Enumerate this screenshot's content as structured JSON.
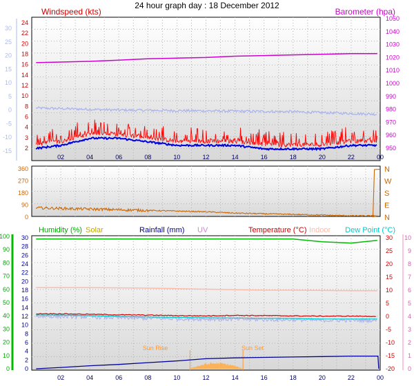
{
  "page_title": "24 hour graph day : 18 December 2012",
  "colors": {
    "wind": "#ff0000",
    "wind_avg": "#0000dd",
    "baro": "#cc00cc",
    "temp_axis": "#aabbee",
    "dir": "#cc6600",
    "humidity": "#00bb00",
    "solar": "#bbaa00",
    "rain": "#000099",
    "uv": "#cc88cc",
    "temperature": "#cc0000",
    "indoor": "#ffbbaa",
    "dewpoint": "#00cccc",
    "sun_marker": "#ff9933"
  },
  "time_ticks": [
    "02",
    "04",
    "06",
    "08",
    "10",
    "12",
    "14",
    "16",
    "18",
    "20",
    "22",
    "00"
  ],
  "panels": {
    "wind": {
      "title_left": "Windspeed (kts)",
      "title_right": "Barometer (hpa)",
      "left_ticks": [
        "24",
        "22",
        "20",
        "18",
        "16",
        "14",
        "12",
        "10",
        "8",
        "6",
        "4",
        "3",
        "2"
      ],
      "outer_ticks": [
        "30",
        "25",
        "20",
        "15",
        "10",
        "5",
        "0",
        "-5",
        "-10",
        "-15"
      ],
      "right_ticks": [
        "1050",
        "1040",
        "1030",
        "1020",
        "1010",
        "1000",
        "990",
        "980",
        "970",
        "960",
        "950"
      ]
    },
    "direction": {
      "left_ticks": [
        "360",
        "270",
        "180",
        "90",
        "0"
      ],
      "right_ticks": [
        "N",
        "W",
        "S",
        "E",
        "N"
      ]
    },
    "climate": {
      "legend": {
        "humidity": "Humidity (%)",
        "solar": "Solar",
        "rain": "Rainfall (mm)",
        "uv": "UV",
        "temperature": "Temperature (°C)",
        "indoor": "Indoor",
        "dewpoint": "Dew Point (°C)"
      },
      "humidity_ticks": [
        "100",
        "90",
        "80",
        "70",
        "60",
        "50",
        "40",
        "30",
        "20",
        "10",
        "0"
      ],
      "rain_ticks": [
        "30",
        "28",
        "26",
        "24",
        "22",
        "20",
        "18",
        "16",
        "14",
        "12",
        "10",
        "8",
        "6",
        "4",
        "2",
        "0"
      ],
      "temp_ticks": [
        "30",
        "25",
        "20",
        "15",
        "10",
        "5",
        "0",
        "-5",
        "-10",
        "-15",
        "-20"
      ],
      "uv_ticks": [
        "10",
        "9",
        "8",
        "7",
        "6",
        "5",
        "4",
        "3",
        "2",
        "1",
        "0"
      ],
      "sunrise_label": "Sun Rise",
      "sunset_label": "Sun Set",
      "bottom_tick_14_annot": "Sun Set"
    }
  },
  "chart_data": [
    {
      "type": "line",
      "title": "Windspeed (kts) / Barometer (hpa)",
      "x_hours": [
        0,
        2,
        4,
        6,
        8,
        10,
        12,
        14,
        16,
        18,
        20,
        22,
        24
      ],
      "series": [
        {
          "name": "Windspeed (kts)",
          "values": [
            3,
            4,
            6,
            6,
            5,
            4,
            4,
            4,
            3,
            3,
            3,
            4,
            4
          ]
        },
        {
          "name": "Barometer (hpa)",
          "values": [
            1016,
            1016.5,
            1017,
            1018,
            1019,
            1019.5,
            1020,
            1021,
            1021.5,
            1022,
            1022.5,
            1023,
            1023
          ]
        }
      ],
      "ylim": [
        2,
        24
      ]
    },
    {
      "type": "line",
      "title": "Wind direction",
      "x_hours": [
        0,
        2,
        4,
        6,
        8,
        10,
        12,
        14,
        16,
        18,
        20,
        22,
        23.9,
        24
      ],
      "series": [
        {
          "name": "Wind direction",
          "values": [
            70,
            65,
            60,
            55,
            50,
            45,
            40,
            30,
            25,
            20,
            15,
            10,
            360,
            360
          ]
        }
      ],
      "ylim": [
        0,
        360
      ]
    },
    {
      "type": "line",
      "title": "Climate",
      "x_hours": [
        0,
        2,
        4,
        6,
        8,
        10,
        12,
        14,
        16,
        18,
        20,
        22,
        24
      ],
      "series": [
        {
          "name": "Humidity (%)",
          "values": [
            98,
            98,
            98,
            98,
            98,
            98,
            98,
            98,
            98,
            98,
            96,
            95,
            97
          ]
        },
        {
          "name": "Rainfall (mm)",
          "values": [
            0,
            0.3,
            0.7,
            1.0,
            1.4,
            1.8,
            2.3,
            2.5,
            2.6,
            2.7,
            2.8,
            2.9,
            0
          ]
        },
        {
          "name": "Temperature (°C)",
          "values": [
            1,
            1,
            0.8,
            0.6,
            0.5,
            0.3,
            0.2,
            0.4,
            0.3,
            0.2,
            0.1,
            0.1,
            0
          ]
        },
        {
          "name": "Indoor",
          "values": [
            11,
            11,
            11,
            10.9,
            10.8,
            10.6,
            10.4,
            10.2,
            10,
            10,
            9.9,
            9.8,
            9.8
          ]
        },
        {
          "name": "Dew Point (°C)",
          "values": [
            0.5,
            0.5,
            0.3,
            0,
            -0.2,
            -0.4,
            -0.5,
            -0.6,
            -0.7,
            -0.8,
            -1,
            -1,
            -1
          ]
        },
        {
          "name": "Solar",
          "values": [
            0,
            0,
            0,
            0,
            0,
            0,
            3,
            5,
            0,
            0,
            0,
            0,
            0
          ]
        }
      ]
    }
  ]
}
